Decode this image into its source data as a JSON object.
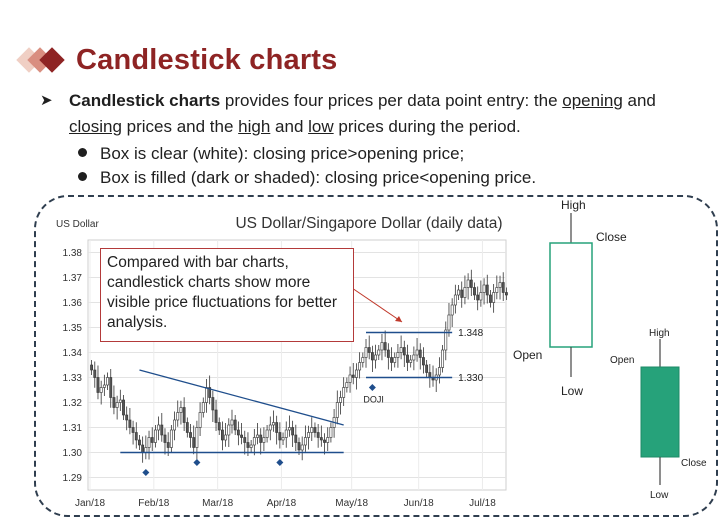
{
  "title": "Candlestick charts",
  "intro": {
    "term": "Candlestick charts",
    "text1": " provides four prices per data point entry: the ",
    "opening": "opening",
    "text2": " and ",
    "closing": "closing",
    "text3": " prices and the ",
    "high": "high",
    "text4": " and ",
    "low": "low",
    "text5": " prices during the period."
  },
  "sub_bullets": [
    "Box is clear (white): closing price>opening price;",
    "Box is filled (dark or shaded): closing price<opening price."
  ],
  "callout": "Compared with bar charts, candlestick charts show more visible price fluctuations for better analysis.",
  "legend": {
    "clear": {
      "high": "High",
      "close": "Close",
      "open": "Open",
      "low": "Low"
    },
    "filled": {
      "high": "High",
      "open": "Open",
      "close": "Close",
      "low": "Low"
    },
    "filled_color": "#26a27a",
    "clear_border": "#26a27a"
  },
  "chart_data": {
    "type": "candlestick",
    "title": "US Dollar/Singapore Dollar (daily data)",
    "ylabel": "US Dollar",
    "ylim": [
      1.285,
      1.385
    ],
    "yticks": [
      "1.38",
      "1.37",
      "1.36",
      "1.35",
      "1.34",
      "1.33",
      "1.32",
      "1.31",
      "1.30",
      "1.29"
    ],
    "xticks": [
      "Jan/18",
      "Feb/18",
      "Mar/18",
      "Apr/18",
      "May/18",
      "Jun/18",
      "Jul/18"
    ],
    "annotations": {
      "resistance": "1.348",
      "support": "1.330",
      "doji": "DOJI"
    },
    "levels": {
      "support_low": 1.3,
      "upper_band": 1.348,
      "lower_band": 1.33
    },
    "trend_line": {
      "from": [
        "Jan/18+",
        1.333
      ],
      "to": [
        "May/18-",
        1.312
      ]
    },
    "closes": [
      1.333,
      1.33,
      1.324,
      1.326,
      1.327,
      1.33,
      1.322,
      1.318,
      1.32,
      1.321,
      1.315,
      1.313,
      1.31,
      1.308,
      1.305,
      1.303,
      1.3,
      1.302,
      1.306,
      1.304,
      1.309,
      1.311,
      1.307,
      1.304,
      1.302,
      1.309,
      1.313,
      1.316,
      1.318,
      1.312,
      1.308,
      1.306,
      1.302,
      1.31,
      1.316,
      1.32,
      1.326,
      1.322,
      1.317,
      1.312,
      1.309,
      1.305,
      1.307,
      1.311,
      1.313,
      1.309,
      1.307,
      1.306,
      1.304,
      1.302,
      1.303,
      1.306,
      1.307,
      1.304,
      1.306,
      1.309,
      1.311,
      1.312,
      1.308,
      1.305,
      1.306,
      1.309,
      1.31,
      1.307,
      1.304,
      1.301,
      1.303,
      1.306,
      1.308,
      1.31,
      1.308,
      1.306,
      1.305,
      1.304,
      1.306,
      1.31,
      1.314,
      1.32,
      1.322,
      1.326,
      1.328,
      1.331,
      1.33,
      1.333,
      1.336,
      1.338,
      1.342,
      1.34,
      1.337,
      1.339,
      1.341,
      1.344,
      1.341,
      1.338,
      1.336,
      1.338,
      1.34,
      1.342,
      1.339,
      1.336,
      1.337,
      1.339,
      1.341,
      1.338,
      1.335,
      1.332,
      1.33,
      1.329,
      1.331,
      1.334,
      1.341,
      1.349,
      1.355,
      1.359,
      1.363,
      1.365,
      1.362,
      1.366,
      1.369,
      1.366,
      1.363,
      1.361,
      1.364,
      1.367,
      1.363,
      1.36,
      1.364,
      1.366,
      1.368,
      1.364,
      1.363
    ]
  }
}
